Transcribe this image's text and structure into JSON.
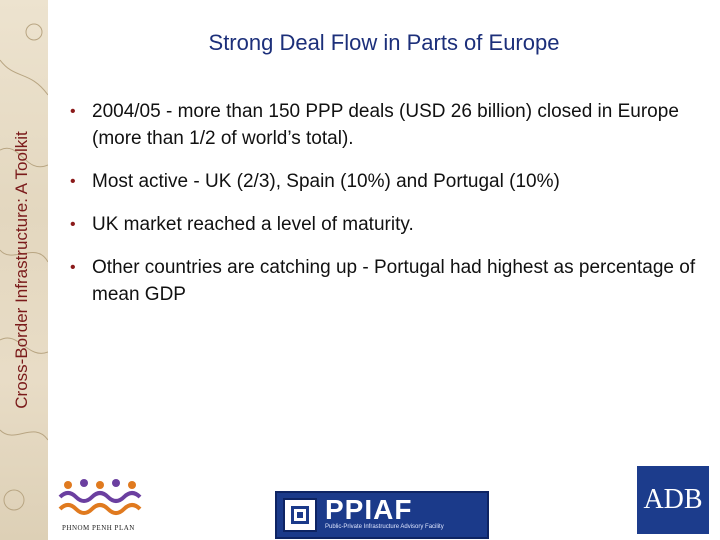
{
  "sidebar": {
    "vertical_title": "Cross-Border Infrastructure: A Toolkit"
  },
  "slide": {
    "title": "Strong Deal Flow in Parts of Europe",
    "bullet_marker": "•",
    "bullets": [
      {
        "text": "2004/05 - more than 150 PPP deals (USD 26 billion) closed in Europe (more than 1/2 of world’s total)."
      },
      {
        "text": "Most active - UK (2/3), Spain (10%) and Portugal (10%)"
      },
      {
        "text": "UK market reached a level of maturity."
      },
      {
        "text": "Other countries are catching up - Portugal had highest as percentage of mean GDP"
      }
    ]
  },
  "footer": {
    "left_logo_label": "PHNOM PENH PLAN",
    "ppiaf_name": "PPIAF",
    "ppiaf_subtitle": "Public-Private Infrastructure Advisory Facility",
    "adb_label": "ADB"
  },
  "colors": {
    "title": "#1c2f7a",
    "vertical_title": "#7a1a1a",
    "bullet_marker": "#8b1a1a",
    "ppiaf_blue": "#1b3a8a",
    "adb_blue": "#1c3c8c"
  }
}
